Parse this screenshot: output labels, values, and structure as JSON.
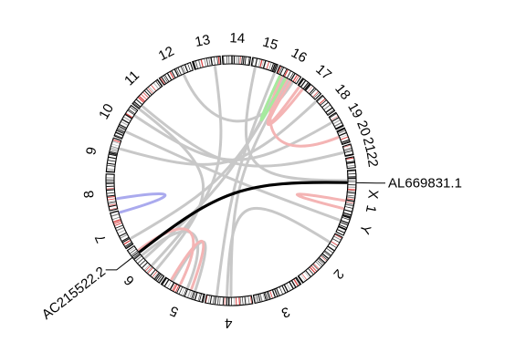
{
  "chromosomes": [
    {
      "name": "1",
      "start": -3,
      "end": 26
    },
    {
      "name": "2",
      "start": 27,
      "end": 55
    },
    {
      "name": "3",
      "start": 56,
      "end": 79
    },
    {
      "name": "4",
      "start": 80,
      "end": 102
    },
    {
      "name": "5",
      "start": 103,
      "end": 124
    },
    {
      "name": "6",
      "start": 125,
      "end": 146
    },
    {
      "name": "7",
      "start": 147,
      "end": 165
    },
    {
      "name": "8",
      "start": 166,
      "end": 183
    },
    {
      "name": "9",
      "start": 184,
      "end": 200
    },
    {
      "name": "10",
      "start": 201,
      "end": 217
    },
    {
      "name": "11",
      "start": 218,
      "end": 234
    },
    {
      "name": "12",
      "start": 235,
      "end": 251
    },
    {
      "name": "13",
      "start": 252,
      "end": 265
    },
    {
      "name": "14",
      "start": 266,
      "end": 279
    },
    {
      "name": "15",
      "start": 280,
      "end": 292
    },
    {
      "name": "16",
      "start": 293,
      "end": 304
    },
    {
      "name": "17",
      "start": 305,
      "end": 316
    },
    {
      "name": "18",
      "start": 317,
      "end": 326
    },
    {
      "name": "19",
      "start": 327,
      "end": 334
    },
    {
      "name": "20",
      "start": 335,
      "end": 342
    },
    {
      "name": "21",
      "start": 343,
      "end": 348
    },
    {
      "name": "22",
      "start": 349,
      "end": 354
    },
    {
      "name": "X",
      "start": 355,
      "end": 376
    },
    {
      "name": "Y",
      "start": 377,
      "end": 383
    }
  ],
  "links": [
    {
      "a1": 130,
      "a2": 218,
      "color": "grey"
    },
    {
      "a1": 133,
      "a2": 262,
      "color": "grey"
    },
    {
      "a1": 138,
      "a2": 297,
      "color": "grey"
    },
    {
      "a1": 150,
      "a2": 298,
      "color": "grey"
    },
    {
      "a1": 90,
      "a2": 300,
      "color": "grey"
    },
    {
      "a1": 97,
      "a2": 292,
      "color": "grey"
    },
    {
      "a1": 92,
      "a2": 32,
      "color": "grey"
    },
    {
      "a1": 205,
      "a2": 20,
      "color": "grey"
    },
    {
      "a1": 214,
      "a2": 330,
      "color": "grey"
    },
    {
      "a1": 220,
      "a2": 346,
      "color": "grey"
    },
    {
      "a1": 282,
      "a2": 0,
      "color": "grey"
    },
    {
      "a1": 246,
      "a2": 302,
      "color": "grey"
    },
    {
      "a1": 196,
      "a2": 317,
      "color": "grey"
    },
    {
      "a1": 112,
      "a2": 140,
      "color": "grey"
    },
    {
      "a1": 108,
      "a2": 120,
      "color": "grey"
    },
    {
      "a1": 116,
      "a2": 143,
      "color": "red"
    },
    {
      "a1": 110,
      "a2": 121,
      "color": "red"
    },
    {
      "a1": 10,
      "a2": 14,
      "color": "red"
    },
    {
      "a1": 296,
      "a2": 338,
      "color": "red"
    },
    {
      "a1": 299,
      "a2": 308,
      "color": "red"
    },
    {
      "a1": 301,
      "a2": 306,
      "color": "red"
    },
    {
      "a1": 295,
      "a2": 298,
      "color": "green"
    },
    {
      "a1": 164,
      "a2": 171,
      "color": "blue"
    },
    {
      "a1": 142,
      "a2": 1,
      "color": "black"
    }
  ],
  "link_colors": {
    "grey": "#c8c8c8",
    "red": "#f4b4b4",
    "green": "#a6ea9e",
    "blue": "#aaaaee",
    "black": "#000000"
  },
  "gene_labels": [
    {
      "text": "AL669831.1",
      "angle": 1
    },
    {
      "text": "AC215522.2",
      "angle": 142
    }
  ]
}
